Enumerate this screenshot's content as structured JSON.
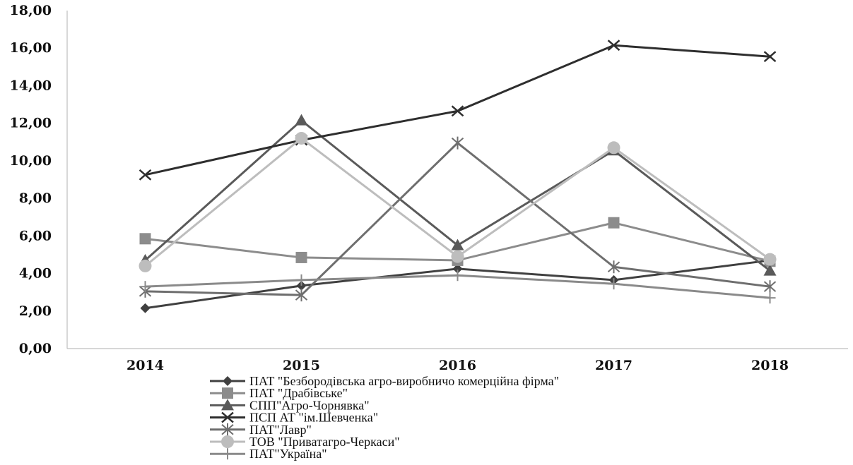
{
  "chart_data": {
    "type": "line",
    "title": "",
    "xlabel": "",
    "ylabel": "",
    "categories": [
      "2014",
      "2015",
      "2016",
      "2017",
      "2018"
    ],
    "ylim": [
      0,
      18
    ],
    "yticks": [
      "0,00",
      "2,00",
      "4,00",
      "6,00",
      "8,00",
      "10,00",
      "12,00",
      "14,00",
      "16,00",
      "18,00"
    ],
    "grid": false,
    "legend_position": "bottom",
    "series": [
      {
        "name": "ПАТ \"Безбородівська агро-виробничо комерційна фірма\"",
        "values": [
          2.15,
          3.35,
          4.25,
          3.65,
          4.7
        ],
        "color": "#404040",
        "marker": "diamond"
      },
      {
        "name": "ПАТ \"Драбівське\"",
        "values": [
          5.85,
          4.85,
          4.7,
          6.7,
          4.65
        ],
        "color": "#8c8c8c",
        "marker": "square"
      },
      {
        "name": "СПП\"Агро-Чорнявка\"",
        "values": [
          4.7,
          12.15,
          5.5,
          10.55,
          4.15
        ],
        "color": "#5a5a5a",
        "marker": "triangle"
      },
      {
        "name": "ПСП АТ \"ім.Шевченка\"",
        "values": [
          9.25,
          11.1,
          12.65,
          16.15,
          15.55
        ],
        "color": "#2e2e2e",
        "marker": "x"
      },
      {
        "name": "ПАТ\"Лавр\"",
        "values": [
          3.05,
          2.85,
          10.95,
          4.35,
          3.3
        ],
        "color": "#6e6e6e",
        "marker": "star"
      },
      {
        "name": "ТОВ \"Приватагро-Черкаси\"",
        "values": [
          4.4,
          11.2,
          4.9,
          10.7,
          4.75
        ],
        "color": "#bdbdbd",
        "marker": "circle"
      },
      {
        "name": "ПАТ\"Україна\"",
        "values": [
          3.3,
          3.65,
          3.9,
          3.45,
          2.7
        ],
        "color": "#8a8a8a",
        "marker": "plus"
      }
    ]
  }
}
